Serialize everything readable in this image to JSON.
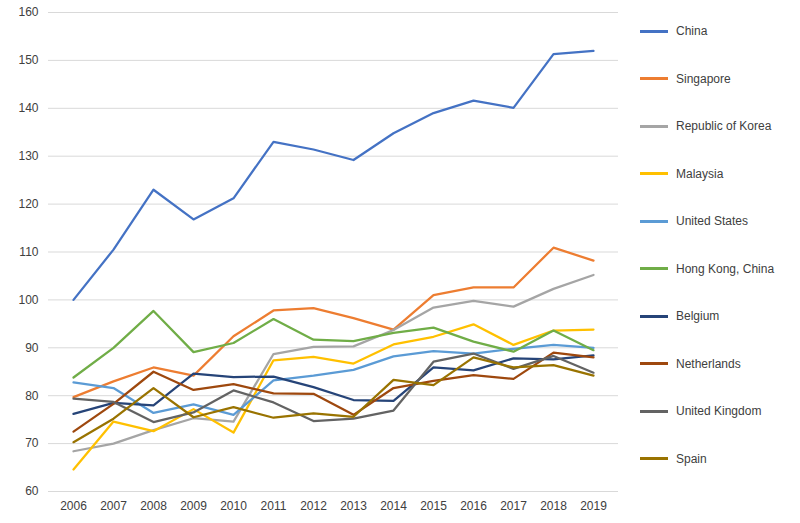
{
  "chart_data": {
    "type": "line",
    "categories": [
      "2006",
      "2007",
      "2008",
      "2009",
      "2010",
      "2011",
      "2012",
      "2013",
      "2014",
      "2015",
      "2016",
      "2017",
      "2018",
      "2019"
    ],
    "series": [
      {
        "name": "China",
        "color": "#4472C4",
        "values": [
          100,
          110.5,
          123,
          116.8,
          121.2,
          133,
          131.4,
          129.2,
          134.8,
          139,
          141.6,
          140.1,
          151.3,
          152
        ]
      },
      {
        "name": "Singapore",
        "color": "#ED7D31",
        "values": [
          79.7,
          83,
          85.9,
          84.2,
          92.4,
          97.8,
          98.3,
          96.2,
          93.8,
          101,
          102.6,
          102.6,
          110.9,
          108.2
        ]
      },
      {
        "name": "Republic of Korea",
        "color": "#A5A5A5",
        "values": [
          68.4,
          70,
          72.8,
          75.3,
          74.6,
          88.7,
          90.2,
          90.3,
          93.7,
          98.4,
          99.8,
          98.6,
          102.3,
          105.2
        ]
      },
      {
        "name": "Malaysia",
        "color": "#FFC000",
        "values": [
          64.6,
          74.6,
          72.6,
          77.2,
          72.3,
          87.4,
          88.1,
          86.7,
          90.7,
          92.3,
          94.9,
          90.6,
          93.6,
          93.8
        ]
      },
      {
        "name": "United States",
        "color": "#5B9BD5",
        "values": [
          82.8,
          81.6,
          76.4,
          78.2,
          76,
          83.2,
          84.2,
          85.4,
          88.2,
          89.3,
          88.8,
          89.8,
          90.6,
          90
        ]
      },
      {
        "name": "Hong Kong, China",
        "color": "#70AD47",
        "values": [
          83.8,
          90,
          97.7,
          89.1,
          91,
          96,
          91.7,
          91.4,
          93.1,
          94.2,
          91.3,
          89.2,
          93.6,
          89.5
        ]
      },
      {
        "name": "Belgium",
        "color": "#264478",
        "values": [
          76.2,
          78.5,
          78,
          84.6,
          83.9,
          84,
          81.8,
          79.1,
          78.9,
          85.9,
          85.3,
          87.8,
          87.6,
          88.4
        ]
      },
      {
        "name": "Netherlands",
        "color": "#9E480E",
        "values": [
          72.5,
          78.3,
          85,
          81.2,
          82.4,
          80.5,
          80.4,
          76,
          81.6,
          83.1,
          84.3,
          83.5,
          89,
          88
        ]
      },
      {
        "name": "United Kingdom",
        "color": "#636363",
        "values": [
          79.4,
          78.7,
          74.5,
          76.5,
          81.1,
          78.6,
          74.7,
          75.2,
          76.9,
          87.1,
          88.8,
          85.6,
          88.3,
          84.8
        ]
      },
      {
        "name": "Spain",
        "color": "#997300",
        "values": [
          70.3,
          75.2,
          81.6,
          75.5,
          77.6,
          75.4,
          76.3,
          75.6,
          83.3,
          82.2,
          88,
          85.9,
          86.4,
          84.2
        ]
      }
    ],
    "ylim": [
      60,
      160
    ],
    "yticks": [
      60,
      70,
      80,
      90,
      100,
      110,
      120,
      130,
      140,
      150,
      160
    ],
    "grid": true,
    "legend": "right"
  }
}
